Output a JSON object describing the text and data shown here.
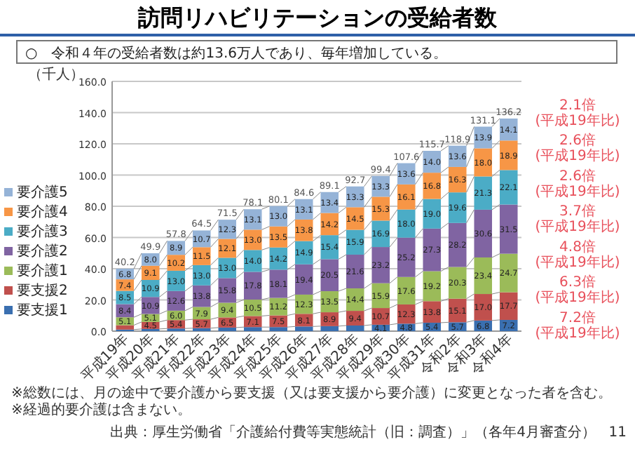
{
  "chart_data": {
    "type": "bar",
    "stacked": true,
    "title": "訪問リハビリテーションの受給者数",
    "subtitle": "○　令和４年の受給者数は約13.6万人であり、毎年増加している。",
    "ylabel": "（千人）",
    "categories": [
      "平成19年",
      "平成20年",
      "平成21年",
      "平成22年",
      "平成23年",
      "平成24年",
      "平成25年",
      "平成26年",
      "平成27年",
      "平成28年",
      "平成29年",
      "平成30年",
      "平成31年",
      "令和2年",
      "令和3年",
      "令和4年"
    ],
    "series": [
      {
        "name": "要支援1",
        "color": "#3a6fb0",
        "values": [
          1.0,
          1.4,
          1.7,
          1.9,
          2.3,
          2.6,
          2.6,
          3.0,
          3.2,
          3.6,
          4.1,
          4.8,
          5.4,
          5.7,
          6.8,
          7.2
        ],
        "value_labels": [
          null,
          null,
          null,
          null,
          null,
          null,
          null,
          null,
          null,
          null,
          "4.1",
          "4.8",
          "5.4",
          "5.7",
          "6.8",
          "7.2"
        ]
      },
      {
        "name": "要支援2",
        "color": "#c0504d",
        "values": [
          2.8,
          4.5,
          5.4,
          5.7,
          6.5,
          7.1,
          7.5,
          8.1,
          8.9,
          9.4,
          10.7,
          12.3,
          13.8,
          15.1,
          17.0,
          17.7
        ],
        "value_labels": [
          null,
          "4.5",
          "5.4",
          "5.7",
          "6.5",
          "7.1",
          "7.5",
          "8.1",
          "8.9",
          "9.4",
          "10.7",
          "12.3",
          "13.8",
          "15.1",
          "17.0",
          "17.7"
        ]
      },
      {
        "name": "要介護1",
        "color": "#9bbb59",
        "values": [
          5.1,
          5.1,
          6.0,
          7.9,
          9.4,
          10.5,
          11.2,
          12.3,
          13.5,
          14.4,
          15.9,
          17.6,
          19.2,
          20.3,
          23.4,
          24.7
        ],
        "value_labels": [
          "5.1",
          "5.1",
          "6.0",
          "7.9",
          "9.4",
          "10.5",
          "11.2",
          "12.3",
          "13.5",
          "14.4",
          "15.9",
          "17.6",
          "19.2",
          "20.3",
          "23.4",
          "24.7"
        ]
      },
      {
        "name": "要介護2",
        "color": "#8064a2",
        "values": [
          8.4,
          10.9,
          12.6,
          13.8,
          15.8,
          17.8,
          18.1,
          19.4,
          20.5,
          21.6,
          23.2,
          25.2,
          27.3,
          28.2,
          30.6,
          31.5
        ],
        "value_labels": [
          "8.4",
          "10.9",
          "12.6",
          "13.8",
          "15.8",
          "17.8",
          "18.1",
          "19.4",
          "20.5",
          "21.6",
          "23.2",
          "25.2",
          "27.3",
          "28.2",
          "30.6",
          "31.5"
        ]
      },
      {
        "name": "要介護3",
        "color": "#4bacc6",
        "values": [
          8.5,
          10.9,
          13.0,
          13.0,
          13.0,
          14.0,
          14.2,
          14.9,
          15.4,
          15.9,
          16.9,
          18.0,
          19.0,
          19.6,
          21.3,
          22.1
        ],
        "value_labels": [
          "8.5",
          "10.9",
          "13.0",
          "13.0",
          "13.0",
          "14.0",
          "14.2",
          "14.9",
          "15.4",
          "15.9",
          "16.9",
          "18.0",
          "19.0",
          "19.6",
          "21.3",
          "22.1"
        ]
      },
      {
        "name": "要介護4",
        "color": "#f79646",
        "values": [
          7.4,
          9.1,
          10.2,
          11.5,
          12.1,
          13.0,
          13.5,
          13.8,
          14.2,
          14.5,
          15.3,
          16.1,
          16.8,
          16.3,
          18.0,
          18.9
        ],
        "value_labels": [
          "7.4",
          "9.1",
          "10.2",
          "11.5",
          "12.1",
          "13.0",
          "13.5",
          "13.8",
          "14.2",
          "14.5",
          "15.3",
          "16.1",
          "16.8",
          "16.3",
          "18.0",
          "18.9"
        ]
      },
      {
        "name": "要介護5",
        "color": "#95b3d7",
        "values": [
          6.8,
          8.0,
          8.9,
          10.7,
          12.3,
          13.1,
          13.0,
          13.1,
          13.4,
          13.3,
          13.3,
          13.6,
          14.0,
          13.6,
          13.9,
          14.1
        ],
        "value_labels": [
          "6.8",
          "8.0",
          "8.9",
          "10.7",
          "12.3",
          "13.1",
          "13.0",
          "13.1",
          "13.4",
          "13.3",
          "13.3",
          "13.6",
          "14.0",
          "13.6",
          "13.9",
          "14.1"
        ]
      }
    ],
    "totals": [
      "40.2",
      "49.9",
      "57.8",
      "64.5",
      "71.5",
      "78.1",
      "80.1",
      "84.6",
      "89.1",
      "92.7",
      "99.4",
      "107.6",
      "115.7",
      "118.9",
      "131.1",
      "136.2"
    ],
    "ylim": [
      0,
      160
    ],
    "yticks": [
      {
        "value": 0,
        "label": "0.0"
      },
      {
        "value": 20,
        "label": "20.0"
      },
      {
        "value": 40,
        "label": "40.0"
      },
      {
        "value": 60,
        "label": "60.0"
      },
      {
        "value": 80,
        "label": "80.0"
      },
      {
        "value": 100,
        "label": "100.0"
      },
      {
        "value": 120,
        "label": "120.0"
      },
      {
        "value": 140,
        "label": "140.0"
      },
      {
        "value": 160,
        "label": "160.0"
      }
    ],
    "grid": "y",
    "legend": "left",
    "annotations": [
      "2.1倍\n(平成19年比)",
      "2.6倍\n(平成19年比)",
      "2.6倍\n(平成19年比)",
      "3.7倍\n(平成19年比)",
      "4.8倍\n(平成19年比)",
      "6.3倍\n(平成19年比)",
      "7.2倍\n(平成19年比)",
      "※総数には、月の途中で要介護から要支援（又は要支援から要介護）に変更となった者を含む。",
      "※経過的要介護は含まない。",
      "出典：厚生労働省「介護給付費等実態統計（旧：調査）」（各年4月審査分）",
      "11"
    ]
  }
}
